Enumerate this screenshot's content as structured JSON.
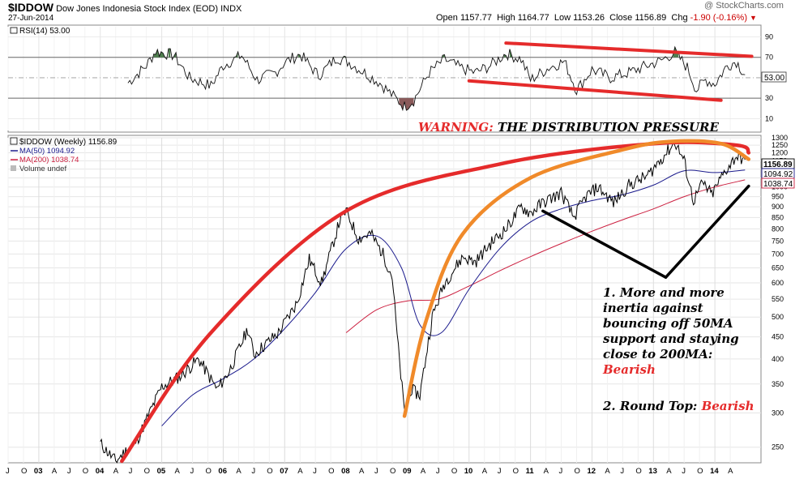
{
  "header": {
    "symbol": "$IDDOW",
    "name": "Dow Jones Indonesia Stock Index (EOD)",
    "exchange": "INDX",
    "date": "27-Jun-2014",
    "watermark": "@ StockCharts.com",
    "open_label": "Open",
    "open": "1157.77",
    "high_label": "High",
    "high": "1164.77",
    "low_label": "Low",
    "low": "1153.26",
    "close_label": "Close",
    "close": "1156.89",
    "chg_label": "Chg",
    "chg": "-1.90 (-0.16%)",
    "chg_marker": "▼"
  },
  "rsi_panel": {
    "label": "RSI(14) 53.00",
    "current_value": "53.00",
    "ticks": [
      10,
      30,
      50,
      70,
      90
    ],
    "overbought": 70,
    "oversold": 30
  },
  "price_panel": {
    "legend_main": "$IDDOW (Weekly) 1156.89",
    "legend_ma50": "MA(50) 1094.92",
    "legend_ma200": "MA(200) 1038.74",
    "legend_volume": "Volume undef",
    "last_price": "1156.89",
    "ma50_value": "1094.92",
    "ma200_value": "1038.74"
  },
  "annotations": {
    "warning_prefix": "WARNING:",
    "warning_text": " THE DISTRIBUTION PRESSURE",
    "note1_lines": [
      "1. More and more",
      "inertia against",
      "bouncing off 50MA",
      "support and staying",
      "close to 200MA:"
    ],
    "note1_bearish": "Bearish",
    "note2_text": "2. Round Top: ",
    "note2_bearish": "Bearish"
  },
  "colors": {
    "price": "#000000",
    "ma50": "#1a1a8c",
    "ma200": "#cc2040",
    "rsi_overbought_fill": "#4f7f4f",
    "rsi_oversold_fill": "#8a5a5a",
    "red_annotation": "#e52b2b",
    "orange_annotation": "#f08a2a"
  },
  "chart_data": {
    "type": "line",
    "title": "$IDDOW Dow Jones Indonesia Stock Index (EOD) INDX",
    "scale": "log",
    "ylim": [
      230,
      1300
    ],
    "y_ticks": [
      250,
      300,
      350,
      400,
      450,
      500,
      550,
      600,
      650,
      700,
      750,
      800,
      850,
      900,
      950,
      1000,
      1050,
      1100,
      1150,
      1200,
      1250,
      1300
    ],
    "x_tick_labels": [
      "J",
      "O",
      "03",
      "A",
      "J",
      "O",
      "04",
      "A",
      "J",
      "O",
      "05",
      "A",
      "J",
      "O",
      "06",
      "A",
      "J",
      "O",
      "07",
      "A",
      "J",
      "O",
      "08",
      "A",
      "J",
      "O",
      "09",
      "A",
      "J",
      "O",
      "10",
      "A",
      "J",
      "O",
      "11",
      "A",
      "J",
      "O",
      "12",
      "A",
      "J",
      "O",
      "13",
      "A",
      "J",
      "O",
      "14",
      "A"
    ],
    "x_year_ticks": [
      "03",
      "04",
      "05",
      "06",
      "07",
      "08",
      "09",
      "10",
      "11",
      "12",
      "13",
      "14"
    ],
    "price_anchors": [
      {
        "x": 2004.0,
        "y": 255
      },
      {
        "x": 2004.25,
        "y": 232
      },
      {
        "x": 2004.6,
        "y": 260
      },
      {
        "x": 2005.0,
        "y": 345
      },
      {
        "x": 2005.3,
        "y": 365
      },
      {
        "x": 2005.6,
        "y": 400
      },
      {
        "x": 2005.9,
        "y": 340
      },
      {
        "x": 2006.1,
        "y": 375
      },
      {
        "x": 2006.4,
        "y": 470
      },
      {
        "x": 2006.5,
        "y": 410
      },
      {
        "x": 2006.9,
        "y": 460
      },
      {
        "x": 2007.2,
        "y": 540
      },
      {
        "x": 2007.4,
        "y": 680
      },
      {
        "x": 2007.6,
        "y": 600
      },
      {
        "x": 2007.9,
        "y": 840
      },
      {
        "x": 2008.0,
        "y": 880
      },
      {
        "x": 2008.2,
        "y": 760
      },
      {
        "x": 2008.4,
        "y": 780
      },
      {
        "x": 2008.6,
        "y": 700
      },
      {
        "x": 2008.75,
        "y": 620
      },
      {
        "x": 2008.85,
        "y": 420
      },
      {
        "x": 2008.95,
        "y": 300
      },
      {
        "x": 2009.05,
        "y": 340
      },
      {
        "x": 2009.2,
        "y": 330
      },
      {
        "x": 2009.4,
        "y": 500
      },
      {
        "x": 2009.6,
        "y": 600
      },
      {
        "x": 2009.9,
        "y": 690
      },
      {
        "x": 2010.1,
        "y": 670
      },
      {
        "x": 2010.35,
        "y": 740
      },
      {
        "x": 2010.6,
        "y": 800
      },
      {
        "x": 2010.85,
        "y": 900
      },
      {
        "x": 2011.0,
        "y": 870
      },
      {
        "x": 2011.2,
        "y": 920
      },
      {
        "x": 2011.5,
        "y": 970
      },
      {
        "x": 2011.7,
        "y": 850
      },
      {
        "x": 2011.9,
        "y": 950
      },
      {
        "x": 2012.1,
        "y": 1000
      },
      {
        "x": 2012.35,
        "y": 920
      },
      {
        "x": 2012.6,
        "y": 1010
      },
      {
        "x": 2012.9,
        "y": 1060
      },
      {
        "x": 2013.1,
        "y": 1150
      },
      {
        "x": 2013.35,
        "y": 1270
      },
      {
        "x": 2013.5,
        "y": 1150
      },
      {
        "x": 2013.65,
        "y": 930
      },
      {
        "x": 2013.8,
        "y": 1020
      },
      {
        "x": 2013.95,
        "y": 960
      },
      {
        "x": 2014.15,
        "y": 1080
      },
      {
        "x": 2014.35,
        "y": 1180
      },
      {
        "x": 2014.49,
        "y": 1156.89
      }
    ],
    "ma50_anchors": [
      {
        "x": 2005.0,
        "y": 280
      },
      {
        "x": 2005.5,
        "y": 330
      },
      {
        "x": 2006.0,
        "y": 360
      },
      {
        "x": 2006.5,
        "y": 400
      },
      {
        "x": 2007.0,
        "y": 470
      },
      {
        "x": 2007.5,
        "y": 570
      },
      {
        "x": 2008.0,
        "y": 720
      },
      {
        "x": 2008.5,
        "y": 770
      },
      {
        "x": 2008.9,
        "y": 650
      },
      {
        "x": 2009.2,
        "y": 480
      },
      {
        "x": 2009.55,
        "y": 460
      },
      {
        "x": 2010.0,
        "y": 580
      },
      {
        "x": 2010.5,
        "y": 720
      },
      {
        "x": 2011.0,
        "y": 830
      },
      {
        "x": 2011.5,
        "y": 890
      },
      {
        "x": 2012.0,
        "y": 930
      },
      {
        "x": 2012.5,
        "y": 960
      },
      {
        "x": 2013.0,
        "y": 1010
      },
      {
        "x": 2013.5,
        "y": 1090
      },
      {
        "x": 2014.0,
        "y": 1080
      },
      {
        "x": 2014.49,
        "y": 1094.92
      }
    ],
    "ma200_anchors": [
      {
        "x": 2008.0,
        "y": 460
      },
      {
        "x": 2008.5,
        "y": 520
      },
      {
        "x": 2009.0,
        "y": 545
      },
      {
        "x": 2009.5,
        "y": 550
      },
      {
        "x": 2010.0,
        "y": 590
      },
      {
        "x": 2010.5,
        "y": 640
      },
      {
        "x": 2011.0,
        "y": 690
      },
      {
        "x": 2011.5,
        "y": 740
      },
      {
        "x": 2012.0,
        "y": 790
      },
      {
        "x": 2012.5,
        "y": 840
      },
      {
        "x": 2013.0,
        "y": 890
      },
      {
        "x": 2013.5,
        "y": 950
      },
      {
        "x": 2014.0,
        "y": 1000
      },
      {
        "x": 2014.49,
        "y": 1038.74
      }
    ],
    "rsi_anchors": [
      {
        "x": 2004.45,
        "y": 45
      },
      {
        "x": 2004.75,
        "y": 62
      },
      {
        "x": 2004.9,
        "y": 76
      },
      {
        "x": 2005.2,
        "y": 72
      },
      {
        "x": 2005.45,
        "y": 50
      },
      {
        "x": 2005.8,
        "y": 42
      },
      {
        "x": 2006.0,
        "y": 62
      },
      {
        "x": 2006.3,
        "y": 72
      },
      {
        "x": 2006.55,
        "y": 48
      },
      {
        "x": 2006.85,
        "y": 55
      },
      {
        "x": 2007.0,
        "y": 65
      },
      {
        "x": 2007.25,
        "y": 73
      },
      {
        "x": 2007.55,
        "y": 52
      },
      {
        "x": 2007.85,
        "y": 70
      },
      {
        "x": 2008.05,
        "y": 65
      },
      {
        "x": 2008.3,
        "y": 55
      },
      {
        "x": 2008.55,
        "y": 45
      },
      {
        "x": 2008.8,
        "y": 30
      },
      {
        "x": 2008.95,
        "y": 22
      },
      {
        "x": 2009.1,
        "y": 28
      },
      {
        "x": 2009.35,
        "y": 55
      },
      {
        "x": 2009.6,
        "y": 68
      },
      {
        "x": 2009.85,
        "y": 60
      },
      {
        "x": 2010.1,
        "y": 55
      },
      {
        "x": 2010.35,
        "y": 62
      },
      {
        "x": 2010.6,
        "y": 74
      },
      {
        "x": 2010.85,
        "y": 68
      },
      {
        "x": 2011.0,
        "y": 48
      },
      {
        "x": 2011.3,
        "y": 60
      },
      {
        "x": 2011.55,
        "y": 66
      },
      {
        "x": 2011.75,
        "y": 38
      },
      {
        "x": 2012.0,
        "y": 58
      },
      {
        "x": 2012.3,
        "y": 50
      },
      {
        "x": 2012.6,
        "y": 55
      },
      {
        "x": 2012.9,
        "y": 62
      },
      {
        "x": 2013.1,
        "y": 66
      },
      {
        "x": 2013.35,
        "y": 75
      },
      {
        "x": 2013.55,
        "y": 60
      },
      {
        "x": 2013.7,
        "y": 38
      },
      {
        "x": 2013.85,
        "y": 48
      },
      {
        "x": 2014.0,
        "y": 44
      },
      {
        "x": 2014.2,
        "y": 62
      },
      {
        "x": 2014.35,
        "y": 66
      },
      {
        "x": 2014.49,
        "y": 53
      }
    ],
    "annotation_lines": [
      {
        "name": "red-arc",
        "points": [
          {
            "x": 2004.35,
            "y": 232
          },
          {
            "x": 2005.8,
            "y": 460
          },
          {
            "x": 2008.0,
            "y": 880
          },
          {
            "x": 2010.5,
            "y": 1130
          },
          {
            "x": 2013.0,
            "y": 1260
          },
          {
            "x": 2014.35,
            "y": 1250
          },
          {
            "x": 2014.55,
            "y": 1200
          }
        ]
      },
      {
        "name": "orange-arc",
        "points": [
          {
            "x": 2008.95,
            "y": 295
          },
          {
            "x": 2009.3,
            "y": 490
          },
          {
            "x": 2009.9,
            "y": 780
          },
          {
            "x": 2011.0,
            "y": 1050
          },
          {
            "x": 2012.5,
            "y": 1220
          },
          {
            "x": 2013.3,
            "y": 1275
          },
          {
            "x": 2014.1,
            "y": 1260
          },
          {
            "x": 2014.55,
            "y": 1160
          }
        ]
      },
      {
        "name": "black-lower-left",
        "points": [
          {
            "x": 2011.2,
            "y": 880
          },
          {
            "x": 2013.2,
            "y": 618
          }
        ]
      },
      {
        "name": "black-lower-right",
        "points": [
          {
            "x": 2013.2,
            "y": 618
          },
          {
            "x": 2014.55,
            "y": 1005
          }
        ]
      }
    ],
    "rsi_annotation_lines": [
      {
        "name": "rsi-red-top",
        "points": [
          {
            "x": 2010.6,
            "y": 84
          },
          {
            "x": 2014.6,
            "y": 71
          }
        ]
      },
      {
        "name": "rsi-red-bottom",
        "points": [
          {
            "x": 2010.0,
            "y": 47
          },
          {
            "x": 2014.1,
            "y": 28
          }
        ]
      }
    ]
  }
}
